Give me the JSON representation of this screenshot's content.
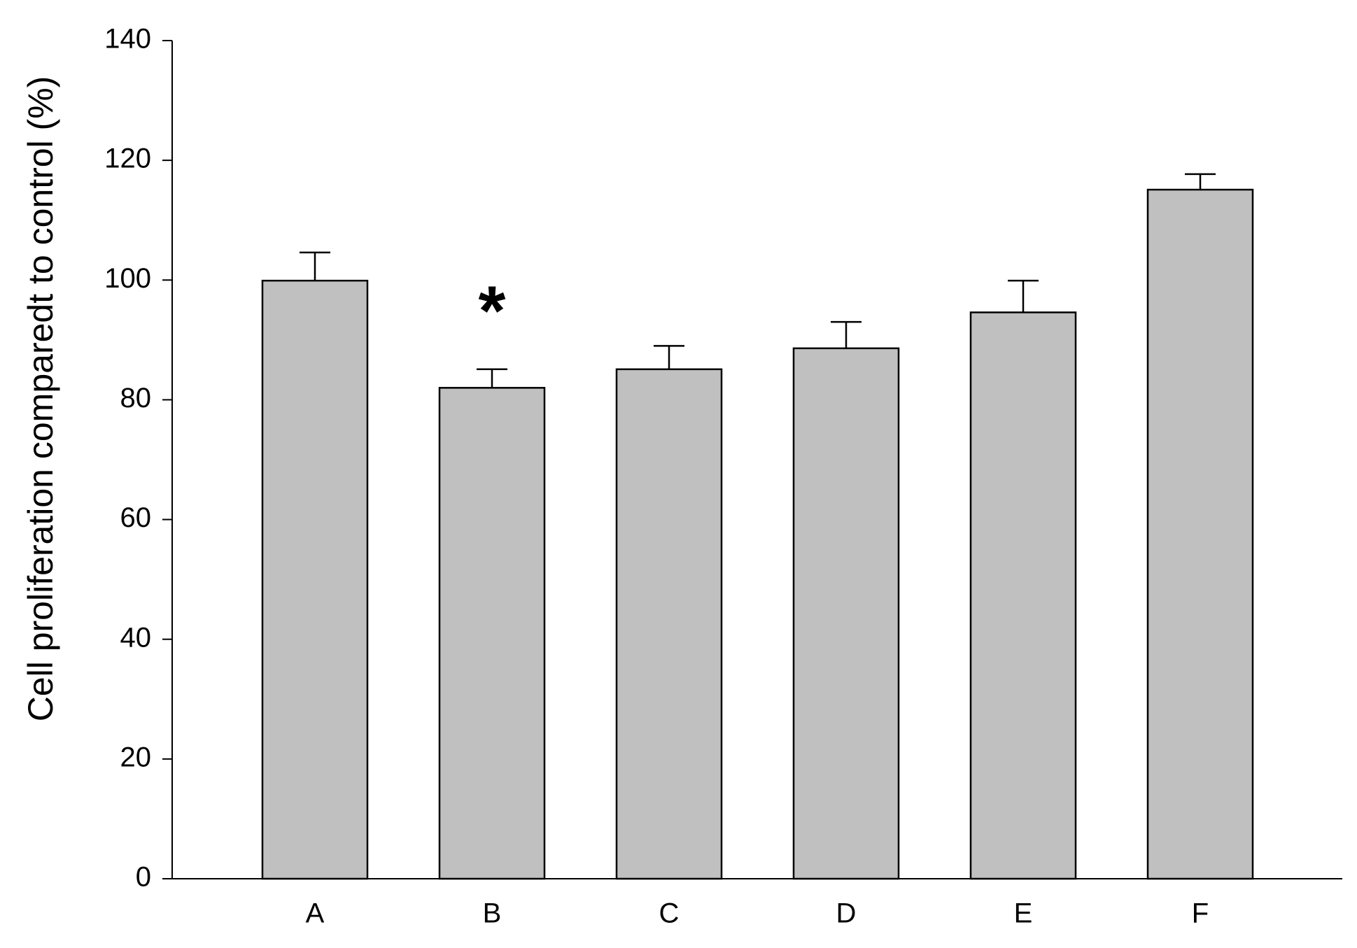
{
  "chart_data": {
    "type": "bar",
    "y_label": "Cell proliferation comparedt to control (%)",
    "categories": [
      "A",
      "B",
      "C",
      "D",
      "E",
      "F"
    ],
    "values": [
      99.9,
      82.0,
      85.1,
      88.6,
      94.6,
      115.1
    ],
    "errors": [
      4.7,
      3.1,
      3.9,
      4.4,
      5.3,
      2.6
    ],
    "color": "#c0c0c0",
    "ylim": [
      0,
      140
    ],
    "yticks": [
      0,
      20,
      40,
      60,
      80,
      100,
      120,
      140
    ],
    "annotations": [
      {
        "text": "*",
        "category": 1
      }
    ]
  }
}
